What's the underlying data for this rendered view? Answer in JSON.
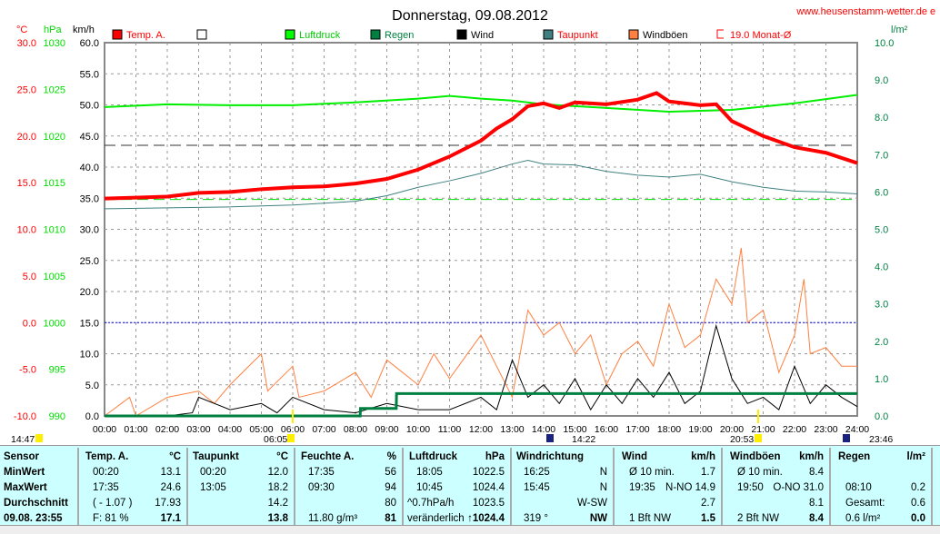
{
  "chart_data": {
    "type": "line",
    "title": "Donnerstag, 09.08.2012",
    "website": "www.heusenstamm-wetter.de",
    "website_suffix": "e",
    "axes": {
      "temp": {
        "unit": "°C",
        "range": [
          -10,
          30
        ],
        "ticks": [
          "30.0",
          "25.0",
          "20.0",
          "15.0",
          "10.0",
          "5.0",
          "0.0",
          "-5.0",
          "-10.0"
        ]
      },
      "pressure": {
        "unit": "hPa",
        "range": [
          990,
          1030
        ],
        "ticks": [
          "1030",
          "1025",
          "1020",
          "1015",
          "1010",
          "1005",
          "1000",
          "995",
          "990"
        ]
      },
      "wind": {
        "unit": "km/h",
        "range": [
          0,
          60
        ],
        "ticks": [
          "60.0",
          "55.0",
          "50.0",
          "45.0",
          "40.0",
          "35.0",
          "30.0",
          "25.0",
          "20.0",
          "15.0",
          "10.0",
          "5.0",
          "0.0"
        ]
      },
      "rain": {
        "unit": "l/m²",
        "range": [
          0,
          10
        ],
        "ticks": [
          "10.0",
          "9.0",
          "8.0",
          "7.0",
          "6.0",
          "5.0",
          "4.0",
          "3.0",
          "2.0",
          "1.0",
          "0.0"
        ]
      }
    },
    "x_ticks": [
      "00:00",
      "01:00",
      "02:00",
      "03:00",
      "04:00",
      "05:00",
      "06:00",
      "07:00",
      "08:00",
      "09:00",
      "10:00",
      "11:00",
      "12:00",
      "13:00",
      "14:00",
      "15:00",
      "16:00",
      "17:00",
      "18:00",
      "19:00",
      "20:00",
      "21:00",
      "22:00",
      "23:00",
      "24:00"
    ],
    "legend": [
      {
        "label": "Temp. A.",
        "color": "#ff0000",
        "text_color": "#ff0000"
      },
      {
        "label": "",
        "color": "#ffffff",
        "text_color": "#000000"
      },
      {
        "label": "Luftdruck",
        "color": "#00ff00",
        "text_color": "#00cc00"
      },
      {
        "label": "Regen",
        "color": "#008040",
        "text_color": "#008040"
      },
      {
        "label": "Wind",
        "color": "#000000",
        "text_color": "#000000"
      },
      {
        "label": "Taupunkt",
        "color": "#408080",
        "text_color": "#ff0000"
      },
      {
        "label": "Windböen",
        "color": "#ff8040",
        "text_color": "#000000"
      },
      {
        "label": "19.0 Monat-Ø",
        "color": "none",
        "text_color": "#ff0000"
      }
    ],
    "reference_lines": {
      "monthly_avg_temp": 19.0,
      "normal_pressure": 1013.2,
      "freezing": 0
    },
    "series": {
      "temp": {
        "x": [
          0,
          1,
          2,
          3,
          4,
          5,
          6,
          7,
          8,
          9,
          10,
          11,
          12,
          12.5,
          13,
          13.5,
          14,
          14.5,
          15,
          16,
          17,
          17.6,
          18,
          19,
          19.5,
          20,
          21,
          22,
          23,
          24
        ],
        "y": [
          13.3,
          13.4,
          13.5,
          13.9,
          14.0,
          14.3,
          14.5,
          14.6,
          14.9,
          15.4,
          16.4,
          17.8,
          19.5,
          20.8,
          21.8,
          23.2,
          23.5,
          23.0,
          23.6,
          23.4,
          23.9,
          24.6,
          23.7,
          23.3,
          23.4,
          21.6,
          20.0,
          18.8,
          18.2,
          17.1
        ]
      },
      "dewpoint": {
        "x": [
          0,
          2,
          4,
          6,
          8,
          9,
          10,
          11,
          12,
          13,
          13.5,
          14,
          15,
          16,
          17,
          18,
          19,
          20,
          21,
          22,
          23,
          24
        ],
        "y": [
          12.2,
          12.3,
          12.4,
          12.6,
          13.0,
          13.6,
          14.5,
          15.2,
          16.0,
          17.0,
          17.4,
          17.0,
          16.9,
          16.2,
          15.8,
          15.6,
          15.9,
          15.1,
          14.5,
          14.1,
          14.0,
          13.8
        ]
      },
      "pressure": {
        "x": [
          0,
          2,
          4,
          6,
          8,
          10,
          11,
          12,
          13,
          14,
          16,
          18,
          19,
          20,
          22,
          24
        ],
        "y": [
          1023.1,
          1023.4,
          1023.3,
          1023.3,
          1023.6,
          1024.0,
          1024.3,
          1024.0,
          1023.8,
          1023.4,
          1023.0,
          1022.6,
          1022.7,
          1022.8,
          1023.5,
          1024.4
        ]
      },
      "wind": {
        "x": [
          0,
          1,
          2,
          2.8,
          3,
          4,
          5,
          5.5,
          6,
          7,
          8,
          9,
          10,
          11,
          12,
          12.5,
          13,
          13.5,
          14,
          14.5,
          15,
          15.5,
          16,
          16.5,
          17,
          17.5,
          18,
          18.5,
          19,
          19.5,
          20,
          20.5,
          21,
          21.5,
          22,
          22.5,
          23,
          23.5,
          24
        ],
        "y": [
          0,
          0,
          0,
          0.5,
          3,
          1,
          2,
          0.5,
          3,
          1,
          0.5,
          2,
          1,
          1,
          3,
          1,
          9,
          3,
          5,
          2,
          6,
          1,
          5,
          2,
          6,
          3,
          7,
          2,
          4,
          14.5,
          6,
          2,
          3,
          1,
          8,
          2,
          5,
          3,
          1.5
        ]
      },
      "gust": {
        "x": [
          0,
          0.8,
          1,
          2,
          3,
          3.5,
          4,
          5,
          5.2,
          6,
          6.2,
          7,
          8,
          8.5,
          9,
          10,
          10.5,
          11,
          12,
          13,
          13.5,
          14,
          14.5,
          15,
          15.5,
          16,
          16.5,
          17,
          17.5,
          18,
          18.5,
          19,
          19.5,
          20,
          20.3,
          20.5,
          21,
          21.5,
          22,
          22.3,
          22.5,
          23,
          23.5,
          24
        ],
        "y": [
          0,
          3,
          0,
          3,
          4,
          2,
          5,
          10,
          4,
          8,
          3,
          4,
          7,
          3,
          9,
          5,
          10,
          6,
          13,
          3,
          17,
          13,
          15,
          10,
          13,
          5,
          10,
          12,
          8,
          18,
          11,
          13,
          22,
          18,
          27,
          15,
          17,
          7,
          13,
          22,
          10,
          11,
          8,
          8
        ]
      },
      "rain": {
        "x": [
          0,
          8.15,
          8.16,
          9.3,
          9.31,
          24
        ],
        "y": [
          0,
          0,
          0.2,
          0.2,
          0.6,
          0.6
        ]
      }
    },
    "astro": [
      {
        "time": "14:47",
        "icon": "moon-rise"
      },
      {
        "time": "06:05",
        "icon": "sunrise"
      },
      {
        "time": "14:22",
        "icon": "moon-set"
      },
      {
        "time": "20:53",
        "icon": "sunset"
      },
      {
        "time": "23:46",
        "icon": "moon-phase"
      }
    ]
  },
  "table": {
    "sensor": {
      "h": "Sensor",
      "r": [
        "MinWert",
        "MaxWert",
        "Durchschnitt",
        "09.08. 23:55"
      ]
    },
    "temp": {
      "h": "Temp. A.",
      "u": "°C",
      "r": [
        [
          "00:20",
          "13.1"
        ],
        [
          "17:35",
          "24.6"
        ],
        [
          "( - 1.07 )",
          "17.93"
        ],
        [
          "F: 81 %",
          "17.1"
        ]
      ]
    },
    "dew": {
      "h": "Taupunkt",
      "u": "°C",
      "r": [
        [
          "00:20",
          "12.0"
        ],
        [
          "13:05",
          "18.2"
        ],
        [
          "",
          "14.2"
        ],
        [
          "",
          "13.8"
        ]
      ]
    },
    "hum": {
      "h": "Feuchte A.",
      "u": "%",
      "r": [
        [
          "17:35",
          "56"
        ],
        [
          "09:30",
          "94"
        ],
        [
          "",
          "80"
        ],
        [
          "11.80 g/m³",
          "81"
        ]
      ]
    },
    "press": {
      "h": "Luftdruck",
      "u": "hPa",
      "r": [
        [
          "18:05",
          "1022.5"
        ],
        [
          "10:45",
          "1024.4"
        ],
        [
          "^0.7hPa/h",
          "1023.5"
        ],
        [
          "veränderlich",
          "↑1024.4"
        ]
      ]
    },
    "dir": {
      "h": "Windrichtung",
      "u": "",
      "r": [
        [
          "16:25",
          "N"
        ],
        [
          "15:45",
          "N"
        ],
        [
          "",
          "W-SW"
        ],
        [
          "319 °",
          "NW"
        ]
      ]
    },
    "wind": {
      "h": "Wind",
      "u": "km/h",
      "r": [
        [
          "Ø 10 min.",
          "1.7"
        ],
        [
          "19:35",
          "N-NO 14.9"
        ],
        [
          "",
          "2.7"
        ],
        [
          "1 Bft NW",
          "1.5"
        ]
      ]
    },
    "gust": {
      "h": "Windböen",
      "u": "km/h",
      "r": [
        [
          "Ø 10 min.",
          "8.4"
        ],
        [
          "19:50",
          "O-NO 31.0"
        ],
        [
          "",
          "8.1"
        ],
        [
          "2 Bft NW",
          "8.4"
        ]
      ]
    },
    "rain": {
      "h": "Regen",
      "u": "l/m²",
      "r": [
        [
          "",
          ""
        ],
        [
          "08:10",
          "0.2"
        ],
        [
          "Gesamt:",
          "0.6"
        ],
        [
          "0.6 l/m²",
          "0.0"
        ]
      ]
    }
  }
}
